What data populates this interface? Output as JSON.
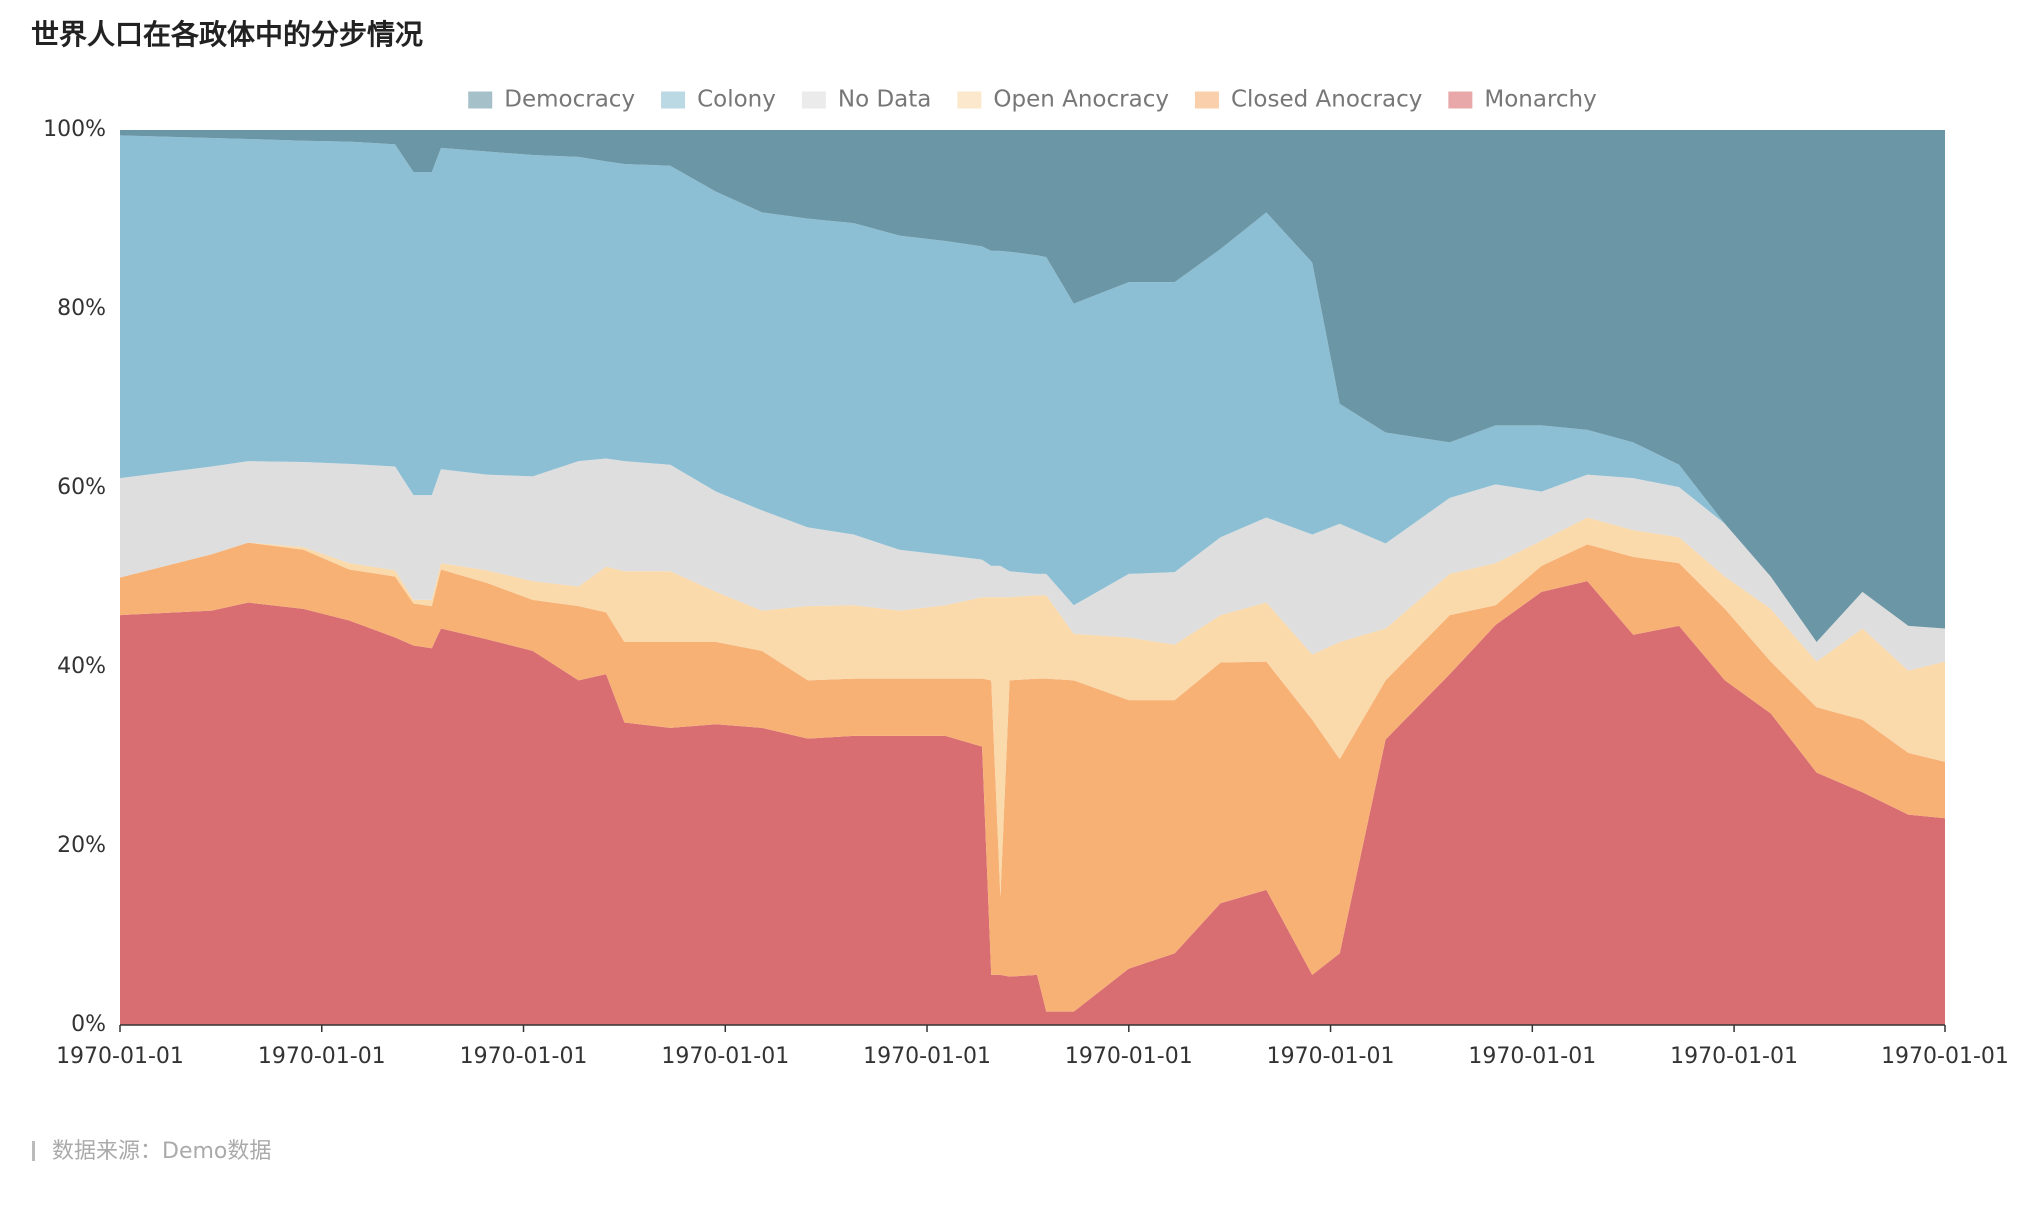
{
  "chart_data": {
    "type": "stacked_area_percent",
    "title": "世界人口在各政体中的分步情况",
    "source": "数据来源：Demo数据",
    "x": [
      0,
      10,
      14,
      20,
      25,
      30,
      32,
      34,
      35,
      40,
      45,
      50,
      53,
      55,
      60,
      65,
      70,
      75,
      80,
      85,
      90,
      94,
      95,
      96,
      97,
      100,
      101,
      104,
      110,
      115,
      120,
      125,
      130,
      133,
      138,
      145,
      150,
      155,
      160,
      165,
      170,
      175,
      180,
      185,
      190,
      195,
      199
    ],
    "xlim": [
      0,
      199
    ],
    "xticks": [
      {
        "value": 0,
        "label": "1970-01-01"
      },
      {
        "value": 22,
        "label": "1970-01-01"
      },
      {
        "value": 44,
        "label": "1970-01-01"
      },
      {
        "value": 66,
        "label": "1970-01-01"
      },
      {
        "value": 88,
        "label": "1970-01-01"
      },
      {
        "value": 110,
        "label": "1970-01-01"
      },
      {
        "value": 132,
        "label": "1970-01-01"
      },
      {
        "value": 154,
        "label": "1970-01-01"
      },
      {
        "value": 176,
        "label": "1970-01-01"
      },
      {
        "value": 199,
        "label": "1970-01-01"
      }
    ],
    "ylim": [
      0,
      100
    ],
    "yticks": [
      {
        "value": 0,
        "label": "0%"
      },
      {
        "value": 20,
        "label": "20%"
      },
      {
        "value": 40,
        "label": "40%"
      },
      {
        "value": 60,
        "label": "60%"
      },
      {
        "value": 80,
        "label": "80%"
      },
      {
        "value": 100,
        "label": "100%"
      }
    ],
    "legend": "top",
    "series": [
      {
        "name": "Democracy",
        "color": "#6b96a6",
        "values": [
          0.6,
          0.9,
          1.0,
          1.2,
          1.3,
          1.6,
          4.7,
          4.7,
          2.0,
          2.4,
          2.8,
          3.0,
          3.5,
          3.8,
          4.0,
          6.9,
          9.2,
          9.9,
          10.4,
          11.8,
          12.4,
          13.0,
          13.5,
          13.5,
          13.6,
          14.0,
          14.2,
          19.4,
          17.0,
          17.0,
          13.3,
          9.2,
          14.8,
          30.6,
          33.8,
          34.9,
          33.0,
          33.0,
          33.5,
          34.9,
          37.4,
          44.0,
          49.9,
          57.2,
          51.6,
          55.4,
          55.7
        ]
      },
      {
        "name": "Colony",
        "color": "#8dbfd4",
        "values": [
          38.3,
          36.7,
          36.0,
          35.9,
          36.0,
          36.0,
          36.1,
          36.1,
          35.9,
          36.1,
          35.9,
          34.0,
          33.2,
          33.2,
          33.4,
          33.5,
          33.3,
          34.5,
          34.8,
          35.1,
          35.1,
          35.0,
          35.2,
          35.2,
          35.7,
          35.6,
          35.4,
          33.7,
          32.6,
          32.4,
          32.2,
          34.1,
          30.4,
          13.4,
          12.4,
          6.2,
          6.6,
          7.4,
          5.0,
          4.0,
          2.5,
          0,
          0,
          0,
          0,
          0,
          0
        ]
      },
      {
        "name": "No Data",
        "color": "#dedede",
        "values": [
          11.1,
          9.8,
          9.1,
          9.5,
          11.1,
          11.6,
          11.7,
          11.7,
          10.5,
          10.7,
          11.7,
          14.0,
          12.1,
          12.3,
          11.9,
          11.2,
          11.2,
          8.8,
          7.9,
          6.8,
          5.6,
          4.2,
          3.5,
          3.5,
          2.9,
          2.4,
          2.4,
          3.2,
          7.1,
          8.1,
          8.7,
          9.5,
          13.4,
          13.2,
          9.5,
          8.5,
          8.8,
          5.5,
          4.8,
          5.8,
          5.6,
          5.9,
          3.6,
          2.2,
          4.1,
          5.0,
          3.7
        ]
      },
      {
        "name": "Open Anocracy",
        "color": "#fad9ab",
        "values": [
          0,
          0,
          0,
          0.3,
          0.7,
          0.7,
          0.4,
          0.7,
          0.7,
          1.4,
          2.1,
          2.2,
          5.1,
          7.9,
          7.9,
          5.6,
          4.5,
          8.3,
          8.2,
          7.6,
          8.2,
          9.1,
          9.3,
          33.5,
          9.3,
          9.3,
          9.3,
          5.2,
          7.0,
          6.2,
          5.3,
          6.6,
          7.3,
          13.1,
          5.8,
          4.6,
          4.7,
          2.8,
          3.0,
          3.0,
          2.9,
          3.6,
          5.9,
          5.1,
          10.2,
          9.2,
          11.2
        ]
      },
      {
        "name": "Closed Anocracy",
        "color": "#f7b175",
        "values": [
          4.2,
          6.3,
          6.7,
          6.6,
          5.7,
          6.8,
          4.7,
          4.7,
          6.6,
          6.3,
          5.7,
          8.3,
          6.9,
          9.0,
          9.6,
          9.2,
          8.6,
          6.5,
          6.4,
          6.4,
          6.4,
          7.6,
          32.9,
          8.7,
          33.1,
          33.1,
          37.2,
          37.0,
          30.0,
          28.3,
          26.9,
          25.5,
          28.5,
          21.7,
          6.6,
          6.6,
          2.2,
          2.9,
          4.1,
          8.7,
          7.0,
          8.0,
          5.8,
          7.3,
          8.1,
          6.9,
          6.3
        ]
      },
      {
        "name": "Monarchy",
        "color": "#d96e72",
        "values": [
          45.8,
          46.3,
          47.2,
          46.5,
          45.2,
          43.3,
          42.4,
          42.1,
          44.3,
          43.1,
          41.8,
          38.5,
          39.2,
          33.8,
          33.2,
          33.6,
          33.2,
          32.0,
          32.3,
          32.3,
          32.3,
          31.1,
          5.6,
          5.6,
          5.4,
          5.6,
          1.5,
          1.5,
          6.3,
          8.0,
          13.6,
          15.1,
          5.6,
          8.0,
          31.9,
          39.2,
          44.7,
          48.4,
          49.6,
          43.6,
          44.6,
          38.5,
          34.8,
          28.2,
          26.0,
          23.5,
          23.1
        ]
      }
    ]
  }
}
